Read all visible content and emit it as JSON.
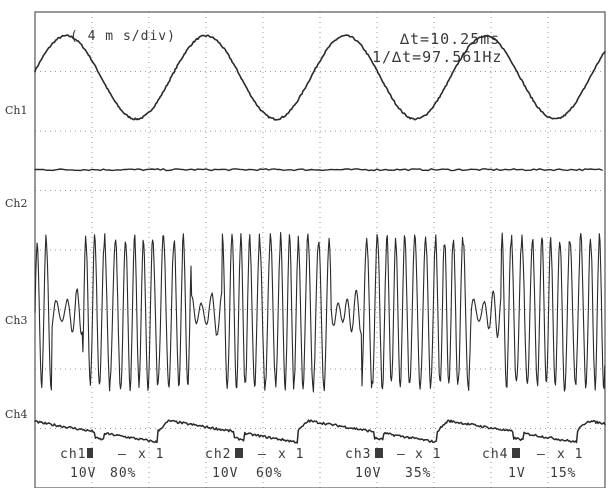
{
  "chart_data": {
    "type": "line",
    "timebase": "( 4 m s/div)",
    "delta_t": "∆t=10.25ms",
    "inv_delta_t": "1/∆t=97.561Hz",
    "channel_labels": [
      "Ch1",
      "Ch2",
      "Ch3",
      "Ch4"
    ],
    "x_divisions": 10,
    "y_divisions": 8,
    "grid": true,
    "series": [
      {
        "name": "Ch1",
        "shape": "sine",
        "period_div": 2.45,
        "phase_div": 0.55,
        "amplitude_div": 0.7,
        "offset_div": 6.9
      },
      {
        "name": "Ch2",
        "shape": "flat",
        "offset_div": 5.35
      },
      {
        "name": "Ch3",
        "shape": "burst-modulated oscillation",
        "carrier_period_div": 0.17,
        "burst_period_div": 2.45,
        "amplitude_div": 1.35,
        "offset_div": 2.95
      },
      {
        "name": "Ch4",
        "shape": "sawtooth-like ripple",
        "period_div": 2.45,
        "amplitude_div": 0.18,
        "offset_div": 0.95
      }
    ],
    "channel_settings": [
      {
        "id": "ch1",
        "coupling": "–",
        "probe": "x 1",
        "volts_div": "10V",
        "position": "80%"
      },
      {
        "id": "ch2",
        "coupling": "–",
        "probe": "x 1",
        "volts_div": "10V",
        "position": "60%"
      },
      {
        "id": "ch3",
        "coupling": "–",
        "probe": "x 1",
        "volts_div": "10V",
        "position": "35%"
      },
      {
        "id": "ch4",
        "coupling": "–",
        "probe": "x 1",
        "volts_div": "1V",
        "position": "15%"
      }
    ],
    "colors": {
      "trace": "#2a2a2a",
      "grid": "#9a9a9a",
      "text": "#3a3a3a"
    }
  }
}
